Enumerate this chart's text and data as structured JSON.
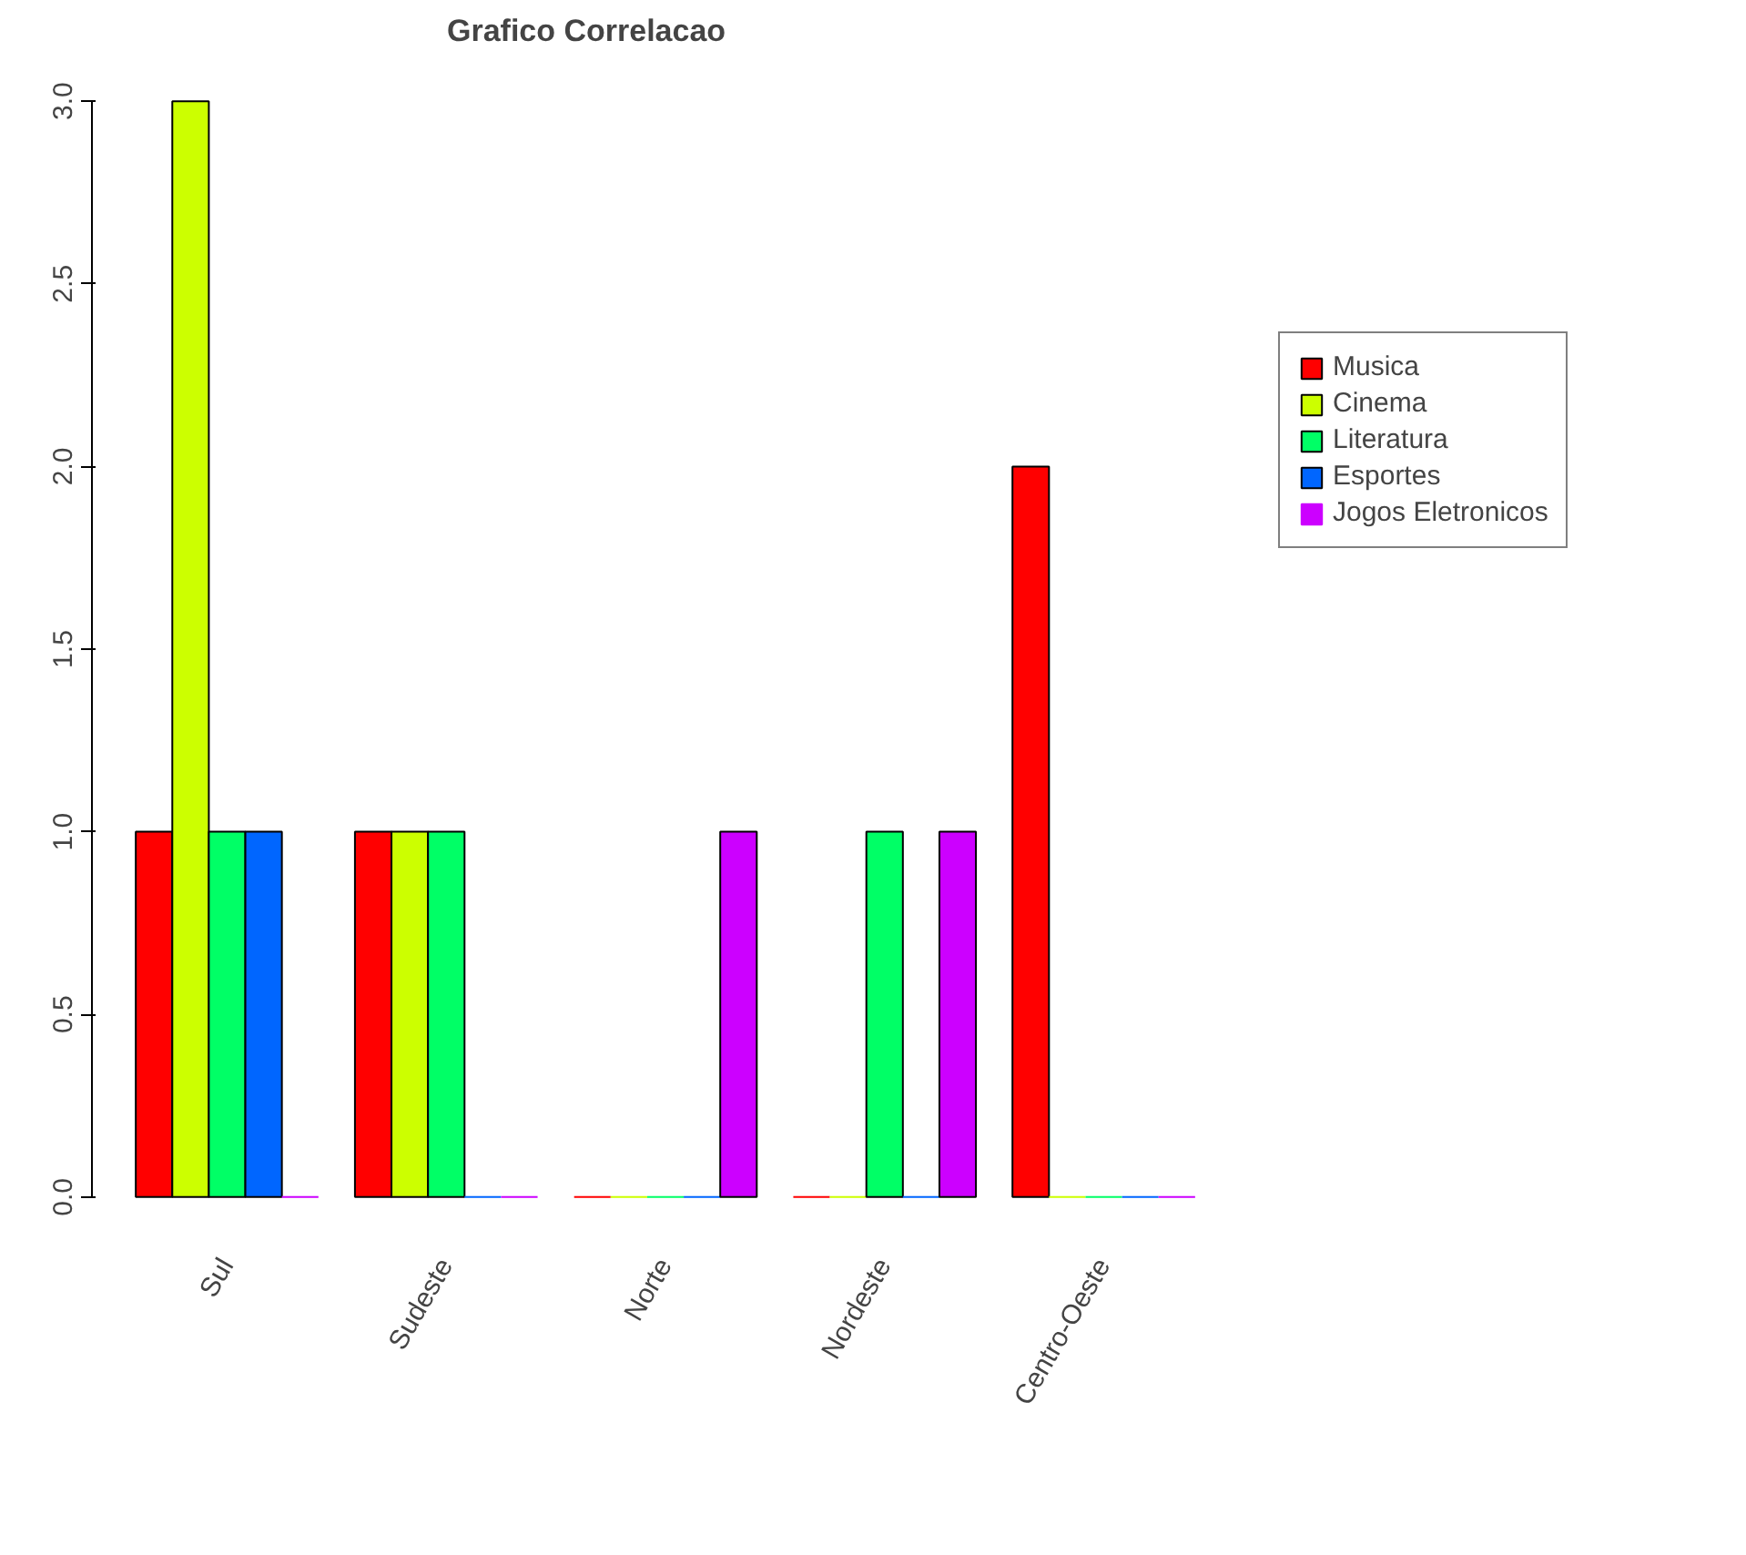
{
  "chart_data": {
    "type": "bar",
    "title": "Grafico Correlacao",
    "categories": [
      "Sul",
      "Sudeste",
      "Norte",
      "Nordeste",
      "Centro-Oeste"
    ],
    "series": [
      {
        "name": "Musica",
        "color": "#ff0000",
        "values": [
          1,
          1,
          0,
          0,
          2
        ]
      },
      {
        "name": "Cinema",
        "color": "#ccff00",
        "values": [
          3,
          1,
          0,
          0,
          0
        ]
      },
      {
        "name": "Literatura",
        "color": "#00ff66",
        "values": [
          1,
          1,
          0,
          1,
          0
        ]
      },
      {
        "name": "Esportes",
        "color": "#0066ff",
        "values": [
          1,
          0,
          0,
          0,
          0
        ]
      },
      {
        "name": "Jogos Eletronicos",
        "color": "#cc00ff",
        "values": [
          0,
          0,
          1,
          1,
          0
        ]
      }
    ],
    "ylim": [
      0,
      3
    ],
    "yticks": [
      {
        "value": 0,
        "label": "0.0"
      },
      {
        "value": 0.5,
        "label": "0.5"
      },
      {
        "value": 1,
        "label": "1.0"
      },
      {
        "value": 1.5,
        "label": "1.5"
      },
      {
        "value": 2,
        "label": "2.0"
      },
      {
        "value": 2.5,
        "label": "2.5"
      },
      {
        "value": 3,
        "label": "3.0"
      }
    ],
    "grid": false,
    "legend": "right"
  }
}
